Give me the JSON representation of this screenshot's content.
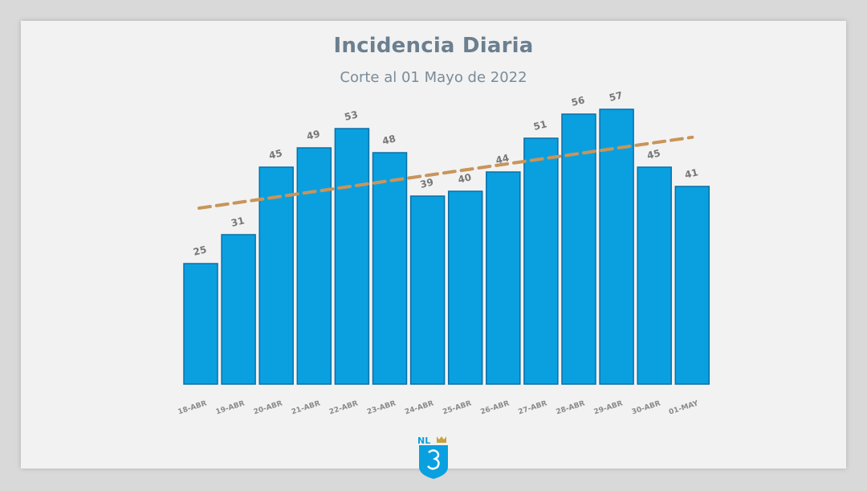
{
  "chart_data": {
    "type": "bar",
    "title": "Incidencia Diaria",
    "subtitle": "Corte al 01 Mayo de 2022",
    "categories": [
      "18-ABR",
      "19-ABR",
      "20-ABR",
      "21-ABR",
      "22-ABR",
      "23-ABR",
      "24-ABR",
      "25-ABR",
      "26-ABR",
      "27-ABR",
      "28-ABR",
      "29-ABR",
      "30-ABR",
      "01-MAY"
    ],
    "values": [
      25,
      31,
      45,
      49,
      53,
      48,
      39,
      40,
      44,
      51,
      56,
      57,
      45,
      41
    ],
    "data_labels": [
      "25",
      "31",
      "45",
      "49",
      "53",
      "48",
      "39",
      "40",
      "44",
      "51",
      "56",
      "57",
      "45",
      "41"
    ],
    "trendline": {
      "style": "dashed",
      "from": 36.5,
      "to": 51.2
    },
    "ylim": [
      0,
      63
    ],
    "grid": false,
    "colors": {
      "bar": "#0aa0e0",
      "bar_edge": "#0a6fa8",
      "trend": "#c8955a",
      "label": "#777777"
    }
  },
  "logo": {
    "text": "NL",
    "icon": "nuevo-leon-shield-icon"
  }
}
